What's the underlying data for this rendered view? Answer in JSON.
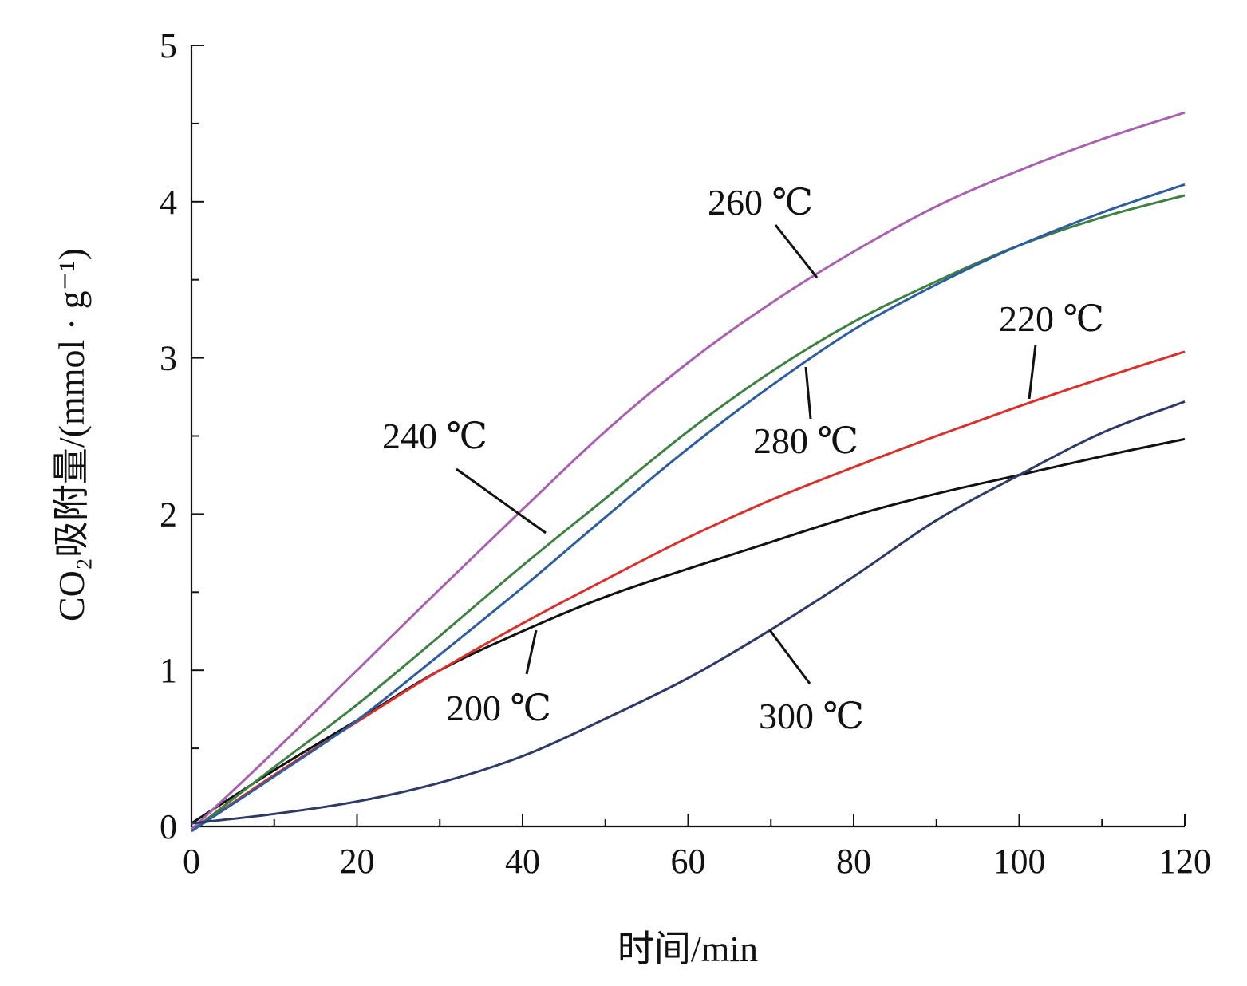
{
  "chart_data": {
    "type": "line",
    "xlabel": "时间/min",
    "ylabel": "CO₂吸附量/(mmol · g⁻¹)",
    "xlim": [
      0,
      120
    ],
    "ylim": [
      0,
      5
    ],
    "xticks": [
      0,
      20,
      40,
      60,
      80,
      100,
      120
    ],
    "yticks": [
      0,
      1,
      2,
      3,
      4,
      5
    ],
    "x": [
      0,
      10,
      20,
      30,
      40,
      50,
      60,
      70,
      80,
      90,
      100,
      110,
      120
    ],
    "grid": false,
    "legend": "none",
    "series": [
      {
        "name": "200 ℃",
        "color": "#111111",
        "values": [
          0.02,
          0.36,
          0.68,
          1.0,
          1.25,
          1.47,
          1.65,
          1.82,
          1.99,
          2.13,
          2.25,
          2.37,
          2.48
        ],
        "label_at": [
          42,
          1.28
        ]
      },
      {
        "name": "220 ℃",
        "color": "#d9302c",
        "values": [
          -0.03,
          0.33,
          0.67,
          1.0,
          1.3,
          1.58,
          1.85,
          2.09,
          2.3,
          2.5,
          2.69,
          2.87,
          3.04
        ],
        "label_at": [
          101,
          2.72
        ]
      },
      {
        "name": "240 ℃",
        "color": "#3e8142",
        "values": [
          -0.03,
          0.38,
          0.78,
          1.22,
          1.67,
          2.1,
          2.53,
          2.91,
          3.23,
          3.49,
          3.72,
          3.9,
          4.04
        ],
        "label_at": [
          43,
          1.88
        ]
      },
      {
        "name": "260 ℃",
        "color": "#a861ae",
        "values": [
          -0.02,
          0.48,
          1.0,
          1.52,
          2.03,
          2.53,
          2.97,
          3.35,
          3.68,
          3.97,
          4.2,
          4.4,
          4.57
        ],
        "label_at": [
          75,
          3.5
        ]
      },
      {
        "name": "280 ℃",
        "color": "#2e5d9f",
        "values": [
          -0.03,
          0.32,
          0.68,
          1.1,
          1.53,
          1.98,
          2.42,
          2.82,
          3.18,
          3.47,
          3.72,
          3.93,
          4.11
        ],
        "label_at": [
          74,
          2.95
        ]
      },
      {
        "name": "300 ℃",
        "color": "#2d3a66",
        "values": [
          0.02,
          0.08,
          0.16,
          0.28,
          0.45,
          0.69,
          0.95,
          1.26,
          1.6,
          1.96,
          2.25,
          2.52,
          2.72
        ],
        "label_at": [
          70,
          1.27
        ]
      }
    ],
    "annotations": [
      {
        "text": "200 ℃",
        "series": 0
      },
      {
        "text": "220 ℃",
        "series": 1
      },
      {
        "text": "240 ℃",
        "series": 2
      },
      {
        "text": "260 ℃",
        "series": 3
      },
      {
        "text": "280 ℃",
        "series": 4
      },
      {
        "text": "300 ℃",
        "series": 5
      }
    ]
  }
}
